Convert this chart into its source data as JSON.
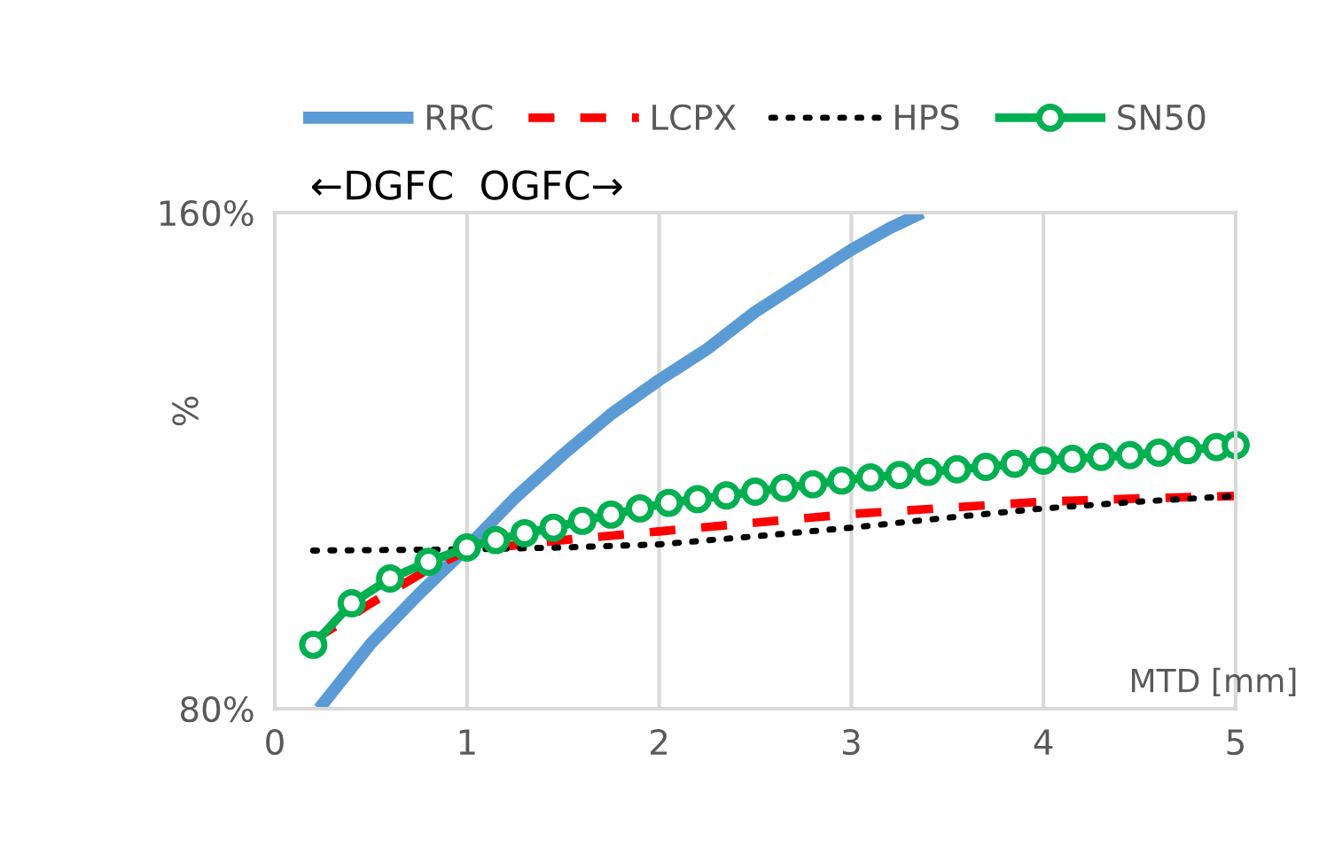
{
  "chart_data": {
    "type": "line",
    "xlabel": "MTD [mm]",
    "ylabel": "%",
    "annotations": [
      "←DGFC  OGFC→"
    ],
    "xlim": [
      0,
      5
    ],
    "xticks": [
      0,
      1,
      2,
      3,
      4,
      5
    ],
    "ylim": [
      80,
      160
    ],
    "yticks": [
      {
        "value": 80,
        "label": "80%"
      },
      {
        "value": 160,
        "label": "160%"
      }
    ],
    "grid": "x",
    "legend": "top",
    "series": [
      {
        "name": "RRC",
        "color": "#5b9bd5",
        "line_style": "solid",
        "marker": "none",
        "x": [
          0.23,
          0.5,
          0.75,
          1,
          1.25,
          1.5,
          1.75,
          2,
          2.25,
          2.5,
          2.75,
          3,
          3.2,
          3.37
        ],
        "values": [
          80,
          90.5,
          98.5,
          106,
          114,
          121,
          127.5,
          133,
          138,
          144,
          149,
          154,
          157.5,
          160
        ]
      },
      {
        "name": "LCPX",
        "color": "#ff0000",
        "line_style": "dashed",
        "marker": "none",
        "x": [
          0.2,
          0.5,
          0.8,
          1,
          1.5,
          2,
          2.5,
          3,
          3.5,
          4,
          4.5,
          5
        ],
        "values": [
          91,
          97,
          102.5,
          105.5,
          107.2,
          108.6,
          110,
          111.4,
          112.4,
          113.4,
          113.9,
          114.3
        ]
      },
      {
        "name": "HPS",
        "color": "#000000",
        "line_style": "dotted",
        "marker": "none",
        "x": [
          0.2,
          1,
          1.5,
          2,
          2.5,
          3,
          3.5,
          4,
          4.5,
          5
        ],
        "values": [
          105.5,
          105.7,
          106,
          106.5,
          107.8,
          109.2,
          110.8,
          112.3,
          113.4,
          114.3
        ]
      },
      {
        "name": "SN50",
        "color": "#00b050",
        "line_style": "solid",
        "marker": "circle",
        "x": [
          0.2,
          0.4,
          0.6,
          0.8,
          1.0,
          1.15,
          1.3,
          1.45,
          1.6,
          1.75,
          1.9,
          2.05,
          2.2,
          2.35,
          2.5,
          2.65,
          2.8,
          2.95,
          3.1,
          3.25,
          3.4,
          3.55,
          3.7,
          3.85,
          4.0,
          4.15,
          4.3,
          4.45,
          4.6,
          4.75,
          4.9,
          5.0
        ],
        "values": [
          90.3,
          97,
          101,
          103.7,
          106,
          107.2,
          108.3,
          109.2,
          110.3,
          111.3,
          112.3,
          113.2,
          113.8,
          114.4,
          115,
          115.6,
          116.2,
          116.8,
          117.3,
          117.7,
          118.2,
          118.6,
          119,
          119.5,
          120,
          120.3,
          120.6,
          120.9,
          121.3,
          121.7,
          122.2,
          122.5
        ]
      }
    ]
  }
}
